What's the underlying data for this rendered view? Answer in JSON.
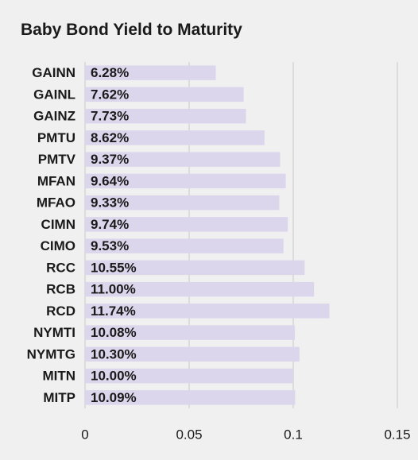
{
  "chart_data": {
    "type": "bar",
    "orientation": "horizontal",
    "title": "Baby Bond Yield to Maturity",
    "xlabel": "",
    "ylabel": "",
    "categories": [
      "GAINN",
      "GAINL",
      "GAINZ",
      "PMTU",
      "PMTV",
      "MFAN",
      "MFAO",
      "CIMN",
      "CIMO",
      "RCC",
      "RCB",
      "RCD",
      "NYMTI",
      "NYMTG",
      "MITN",
      "MITP"
    ],
    "values": [
      0.0628,
      0.0762,
      0.0773,
      0.0862,
      0.0937,
      0.0964,
      0.0933,
      0.0974,
      0.0953,
      0.1055,
      0.11,
      0.1174,
      0.1008,
      0.103,
      0.1,
      0.1009
    ],
    "data_labels": [
      "6.28%",
      "7.62%",
      "7.73%",
      "8.62%",
      "9.37%",
      "9.64%",
      "9.33%",
      "9.74%",
      "9.53%",
      "10.55%",
      "11.00%",
      "11.74%",
      "10.08%",
      "10.30%",
      "10.00%",
      "10.09%"
    ],
    "xlim": [
      0,
      0.15
    ],
    "x_ticks": [
      0,
      0.05,
      0.1,
      0.15
    ],
    "x_tick_labels": [
      "0",
      "0.05",
      "0.1",
      "0.15"
    ],
    "grid": true,
    "bar_color": "#dcd6ec",
    "grid_color": "#c8c8c8"
  }
}
